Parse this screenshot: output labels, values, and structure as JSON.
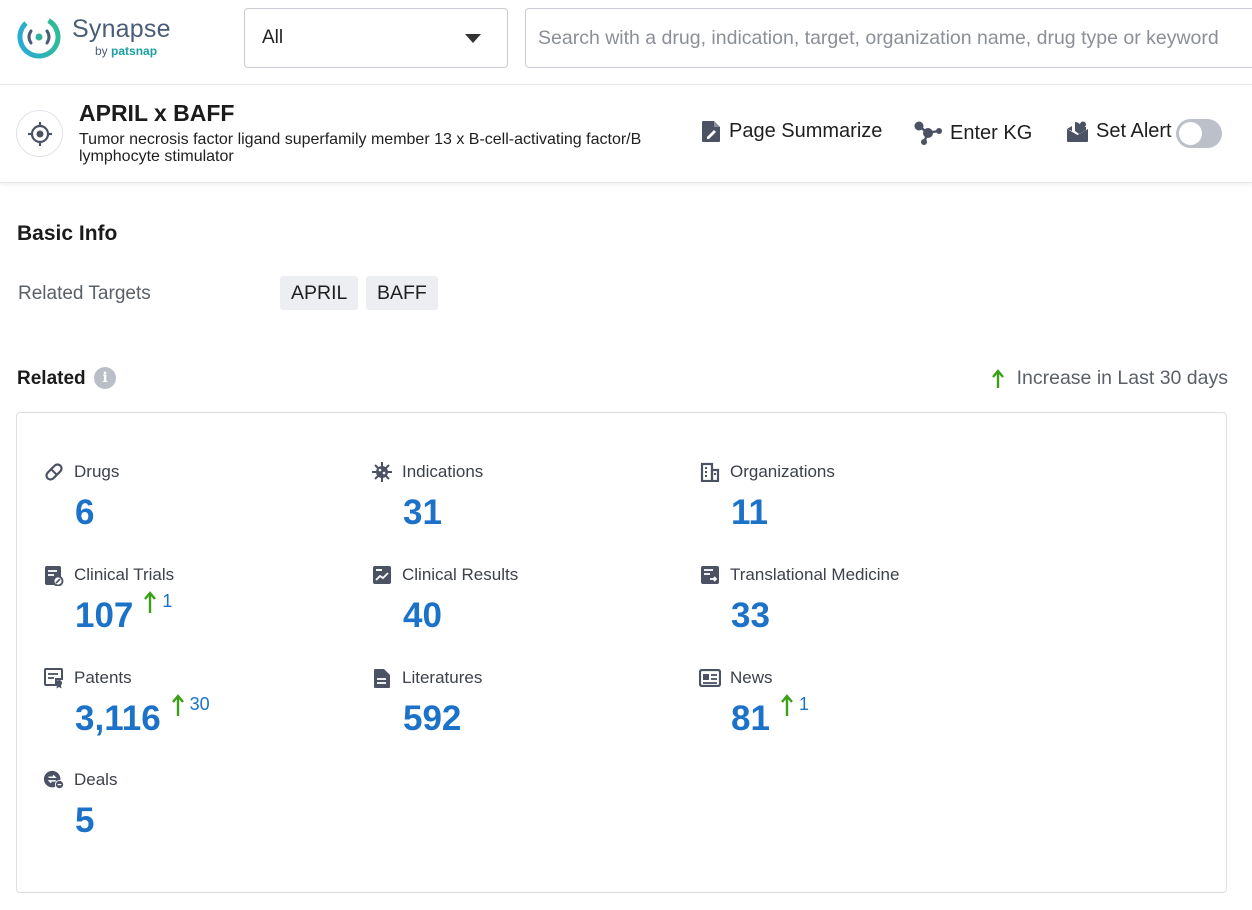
{
  "brand": {
    "name": "Synapse",
    "by": "by",
    "org": "patsnap"
  },
  "search": {
    "scope": "All",
    "placeholder": "Search with a drug, indication, target, organization name, drug type or keyword"
  },
  "entity": {
    "title": "APRIL x BAFF",
    "description": "Tumor necrosis factor ligand superfamily member 13 x B-cell-activating factor/B lymphocyte stimulator",
    "actions": {
      "summarize": "Page Summarize",
      "kg": "Enter KG",
      "alert": "Set Alert"
    },
    "alert_enabled": false
  },
  "basic_info": {
    "title": "Basic Info",
    "related_targets_label": "Related Targets",
    "related_targets": [
      "APRIL",
      "BAFF"
    ]
  },
  "related": {
    "title": "Related",
    "legend": "Increase in Last 30 days",
    "stats": [
      {
        "label": "Drugs",
        "value": "6",
        "icon": "pill-icon"
      },
      {
        "label": "Indications",
        "value": "31",
        "icon": "virus-icon"
      },
      {
        "label": "Organizations",
        "value": "11",
        "icon": "building-icon"
      },
      {
        "label": "Clinical Trials",
        "value": "107",
        "increase": "1",
        "icon": "clinical-trials-icon"
      },
      {
        "label": "Clinical Results",
        "value": "40",
        "icon": "chart-doc-icon"
      },
      {
        "label": "Translational Medicine",
        "value": "33",
        "icon": "translational-icon"
      },
      {
        "label": "Patents",
        "value": "3,116",
        "increase": "30",
        "icon": "patent-icon"
      },
      {
        "label": "Literatures",
        "value": "592",
        "icon": "document-icon"
      },
      {
        "label": "News",
        "value": "81",
        "increase": "1",
        "icon": "newspaper-icon"
      },
      {
        "label": "Deals",
        "value": "5",
        "icon": "deal-icon"
      }
    ]
  },
  "colors": {
    "link_blue": "#1c72c9",
    "increase_green": "#3aa017",
    "brand_teal": "#1aa0a0"
  }
}
